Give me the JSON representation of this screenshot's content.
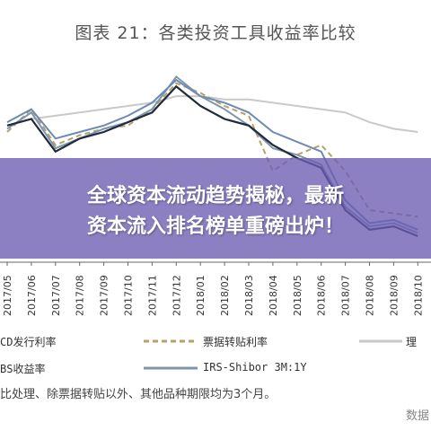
{
  "chart_data": {
    "type": "line",
    "title": "图表 21：各类投资工具收益率比较",
    "categories": [
      "2017/05",
      "2017/06",
      "2017/07",
      "2017/08",
      "2017/09",
      "2017/10",
      "2017/11",
      "2017/12",
      "2018/01",
      "2018/02",
      "2018/03",
      "2018/04",
      "2018/05",
      "2018/06",
      "2018/07",
      "2018/08",
      "2018/09",
      "2018/10"
    ],
    "series": [
      {
        "name": "CD发行利率",
        "color": "#6b8bb5",
        "style": "solid",
        "values": [
          4.35,
          4.55,
          4.1,
          4.2,
          4.3,
          4.45,
          4.65,
          5.0,
          4.75,
          4.65,
          4.5,
          4.2,
          4.05,
          3.9,
          3.15,
          2.8,
          2.85,
          2.7
        ]
      },
      {
        "name": "票据转贴利率",
        "color": "#b8a06a",
        "style": "dashed",
        "values": [
          4.2,
          4.55,
          4.0,
          4.15,
          4.25,
          4.3,
          4.55,
          4.95,
          4.8,
          4.6,
          4.45,
          3.6,
          3.85,
          4.0,
          3.6,
          3.0,
          2.95,
          2.9
        ]
      },
      {
        "name": "理",
        "color": "#c9c9c9",
        "style": "solid",
        "values": [
          4.3,
          4.4,
          4.45,
          4.5,
          4.55,
          4.6,
          4.65,
          4.75,
          4.75,
          4.7,
          4.7,
          4.65,
          4.6,
          4.55,
          4.5,
          4.35,
          4.25,
          4.2
        ]
      },
      {
        "name": "BS收益率",
        "color": "#1f2a3c",
        "style": "solid",
        "values": [
          4.3,
          4.4,
          3.9,
          4.1,
          4.2,
          4.35,
          4.5,
          4.9,
          4.6,
          4.4,
          4.3,
          4.0,
          3.8,
          3.65,
          3.0,
          2.7,
          2.75,
          2.6
        ]
      },
      {
        "name": "IRS-Shibor 3M:1Y",
        "color": "#7f95aa",
        "style": "solid",
        "values": [
          4.25,
          4.5,
          3.95,
          4.1,
          4.25,
          4.35,
          4.55,
          5.05,
          4.75,
          4.55,
          4.3,
          3.95,
          3.85,
          3.7,
          3.05,
          2.75,
          2.8,
          2.65
        ]
      }
    ],
    "ylim": [
      2.2,
      5.4
    ],
    "xlabel": "",
    "ylabel": "",
    "grid": false
  },
  "banner": {
    "line1": "全球资本流动趋势揭秘，最新",
    "line2": "资本流入排名榜单重磅出炉！"
  },
  "footnote": "比处理、除票据转贴以外、其他品种期限均为3个月。",
  "watermark": "数据"
}
